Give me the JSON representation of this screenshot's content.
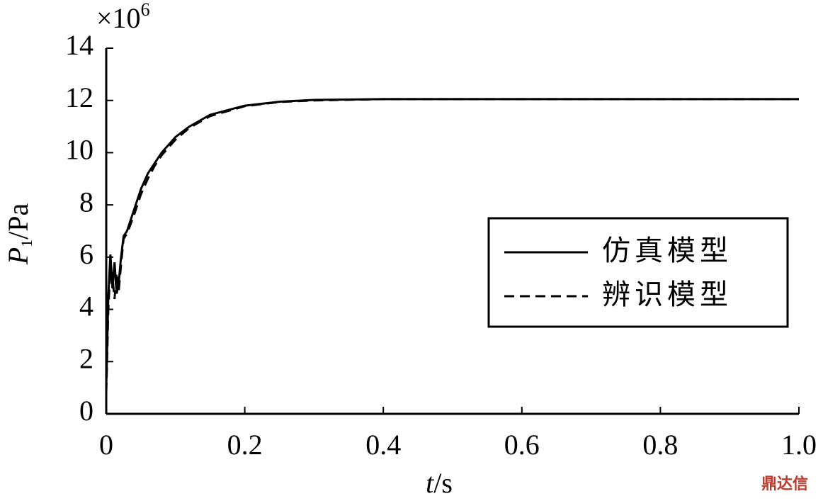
{
  "chart_data": {
    "type": "line",
    "x": [
      0,
      0.003,
      0.006,
      0.009,
      0.012,
      0.015,
      0.018,
      0.021,
      0.025,
      0.03,
      0.04,
      0.05,
      0.06,
      0.07,
      0.08,
      0.1,
      0.12,
      0.15,
      0.2,
      0.25,
      0.3,
      0.4,
      0.5,
      0.6,
      0.8,
      1.0
    ],
    "series": [
      {
        "name": "仿真模型",
        "color": "#000000",
        "style": "solid",
        "values": [
          1.0,
          4.5,
          6.1,
          4.8,
          5.8,
          4.6,
          5.0,
          5.9,
          6.8,
          7.0,
          7.8,
          8.6,
          9.2,
          9.6,
          10.0,
          10.6,
          11.0,
          11.45,
          11.8,
          11.95,
          12.02,
          12.05,
          12.05,
          12.05,
          12.05,
          12.05
        ]
      },
      {
        "name": "辨识模型",
        "color": "#000000",
        "style": "dashed",
        "values": [
          0.8,
          4.0,
          5.6,
          5.2,
          4.4,
          5.4,
          4.7,
          5.6,
          6.7,
          6.9,
          7.6,
          8.4,
          9.0,
          9.5,
          9.9,
          10.5,
          10.95,
          11.4,
          11.78,
          11.94,
          12.0,
          12.05,
          12.05,
          12.05,
          12.05,
          12.05
        ]
      }
    ],
    "xlim": [
      0,
      1
    ],
    "xticks": [
      0,
      0.2,
      0.4,
      0.6,
      0.8,
      {
        "value": 1,
        "label": "1.0"
      }
    ],
    "ylim": [
      0,
      14
    ],
    "yticks": [
      0,
      2,
      4,
      6,
      8,
      10,
      12,
      14
    ],
    "y_multiplier": "×10",
    "y_multiplier_exponent": "6",
    "ylabel_symbol": "P",
    "ylabel_subscript": "1",
    "ylabel_unit": "/Pa",
    "xlabel_symbol": "t",
    "xlabel_unit": "/s",
    "legend": "right",
    "watermark": "鼎达信"
  }
}
